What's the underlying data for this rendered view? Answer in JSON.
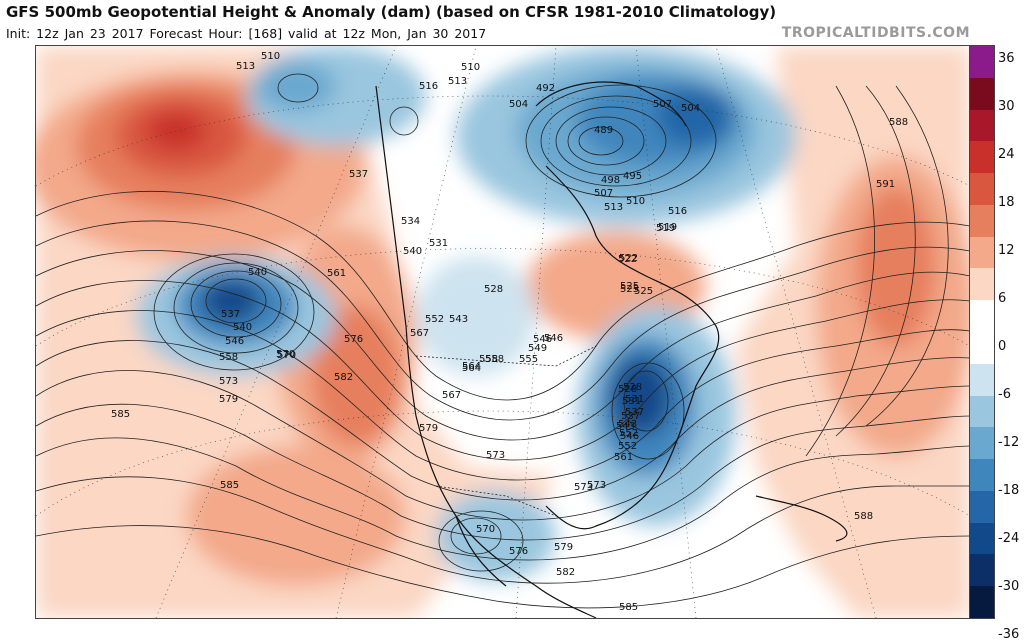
{
  "header": {
    "title": "GFS 500mb Geopotential Height & Anomaly (dam) (based on CFSR 1981-2010 Climatology)",
    "run_info": "Init: 12z Jan 23 2017   Forecast Hour: [168]   valid at 12z Mon, Jan 30 2017",
    "brand": "TROPICALTIDBITS.COM"
  },
  "colorbar": {
    "ticks": [
      "36",
      "30",
      "24",
      "18",
      "12",
      "6",
      "0",
      "-6",
      "-12",
      "-18",
      "-24",
      "-30",
      "-36"
    ],
    "colors": [
      "#8b1a8b",
      "#7a0a1e",
      "#a9182a",
      "#c9302b",
      "#d9573f",
      "#e67f5d",
      "#f3a98a",
      "#fbd7c4",
      "#ffffff",
      "#ffffff",
      "#cde3ef",
      "#9ac6df",
      "#6aa8cf",
      "#3f86bd",
      "#2466a8",
      "#12498a",
      "#0b2f66",
      "#061a40"
    ]
  },
  "map": {
    "height_labels": [
      "510",
      "513",
      "510",
      "516",
      "513",
      "504",
      "492",
      "507",
      "504",
      "489",
      "495",
      "498",
      "507",
      "510",
      "513",
      "516",
      "519",
      "522",
      "525",
      "528",
      "531",
      "534",
      "537",
      "540",
      "543",
      "546",
      "549",
      "552",
      "555",
      "558",
      "561",
      "564",
      "567",
      "570",
      "573",
      "576",
      "579",
      "582",
      "585",
      "588",
      "591",
      "519",
      "522",
      "525",
      "528",
      "531",
      "537",
      "540",
      "543",
      "546",
      "552",
      "558",
      "564",
      "570",
      "573",
      "576",
      "579",
      "582",
      "585",
      "588",
      "537",
      "540",
      "546",
      "558",
      "570",
      "573",
      "579",
      "585",
      "525",
      "528",
      "531",
      "537",
      "543",
      "546",
      "552",
      "561",
      "567",
      "573"
    ],
    "anomaly_centers": [
      "ridge over Alaska/Gulf",
      "trough southwest of Alaska",
      "trough eastern US",
      "trough Hudson Bay/Greenland",
      "ridge western Atlantic",
      "trough northern Mexico"
    ]
  }
}
